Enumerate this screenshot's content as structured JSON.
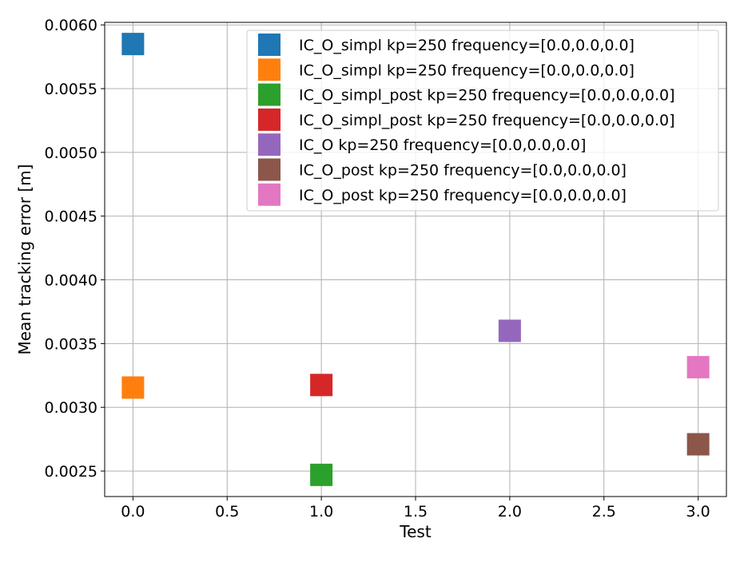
{
  "chart_data": {
    "type": "scatter",
    "xlabel": "Test",
    "ylabel": "Mean tracking error [m]",
    "xlim": [
      -0.15,
      3.15
    ],
    "ylim": [
      0.0023,
      0.00602
    ],
    "xticks": [
      0.0,
      0.5,
      1.0,
      1.5,
      2.0,
      2.5,
      3.0
    ],
    "xtick_labels": [
      "0.0",
      "0.5",
      "1.0",
      "1.5",
      "2.0",
      "2.5",
      "3.0"
    ],
    "yticks": [
      0.0025,
      0.003,
      0.0035,
      0.004,
      0.0045,
      0.005,
      0.0055,
      0.006
    ],
    "ytick_labels": [
      "0.0025",
      "0.0030",
      "0.0035",
      "0.0040",
      "0.0045",
      "0.0050",
      "0.0055",
      "0.0060"
    ],
    "grid": true,
    "legend_position": "top-right",
    "marker": "square",
    "series": [
      {
        "name": "IC_O_simpl kp=250 frequency=[0.0,0.0,0.0]",
        "color": "#1f77b4",
        "points": [
          {
            "x": 0.0,
            "y": 0.00585
          }
        ]
      },
      {
        "name": "IC_O_simpl kp=250 frequency=[0.0,0.0,0.0]",
        "color": "#ff7f0e",
        "points": [
          {
            "x": 0.0,
            "y": 0.003155
          }
        ]
      },
      {
        "name": "IC_O_simpl_post kp=250 frequency=[0.0,0.0,0.0]",
        "color": "#2ca02c",
        "points": [
          {
            "x": 1.0,
            "y": 0.00247
          }
        ]
      },
      {
        "name": "IC_O_simpl_post kp=250 frequency=[0.0,0.0,0.0]",
        "color": "#d62728",
        "points": [
          {
            "x": 1.0,
            "y": 0.003175
          }
        ]
      },
      {
        "name": "IC_O kp=250 frequency=[0.0,0.0,0.0]",
        "color": "#9467bd",
        "points": [
          {
            "x": 2.0,
            "y": 0.0036
          }
        ]
      },
      {
        "name": "IC_O_post kp=250 frequency=[0.0,0.0,0.0]",
        "color": "#8c564b",
        "points": [
          {
            "x": 3.0,
            "y": 0.00271
          }
        ]
      },
      {
        "name": "IC_O_post kp=250 frequency=[0.0,0.0,0.0]",
        "color": "#e377c2",
        "points": [
          {
            "x": 3.0,
            "y": 0.003315
          }
        ]
      }
    ]
  }
}
